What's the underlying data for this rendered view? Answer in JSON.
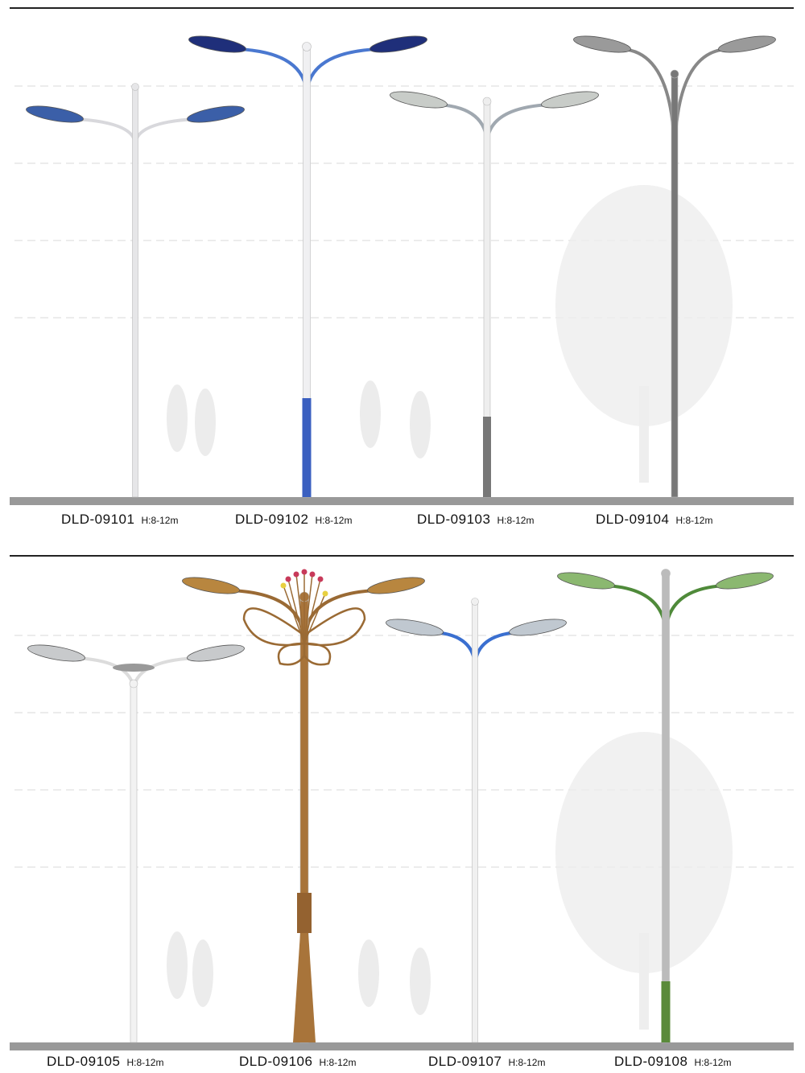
{
  "products": [
    {
      "code": "DLD-09101",
      "height": "H:8-12m",
      "pole_color": "#e6e6e8",
      "arm_color": "#d8d8dc",
      "head_color": "#3b5fa8"
    },
    {
      "code": "DLD-09102",
      "height": "H:8-12m",
      "pole_color": "#f0f0f2",
      "arm_color": "#4a78d0",
      "head_color": "#1f2f7a",
      "base_color": "#3a5fc0"
    },
    {
      "code": "DLD-09103",
      "height": "H:8-12m",
      "pole_color": "#eeeeee",
      "arm_color": "#a0a8b0",
      "head_color": "#c8ccc8",
      "base_color": "#777777"
    },
    {
      "code": "DLD-09104",
      "height": "H:8-12m",
      "pole_color": "#777777",
      "arm_color": "#888888",
      "head_color": "#9a9a9a"
    },
    {
      "code": "DLD-09105",
      "height": "H:8-12m",
      "pole_color": "#f2f2f2",
      "arm_color": "#dcdcdc",
      "head_color": "#c8cacc"
    },
    {
      "code": "DLD-09106",
      "height": "H:8-12m",
      "pole_color": "#a8743a",
      "arm_color": "#9a6a34",
      "head_color": "#b8863f"
    },
    {
      "code": "DLD-09107",
      "height": "H:8-12m",
      "pole_color": "#f0f0f0",
      "arm_color": "#3a6fd0",
      "head_color": "#c0c8d0"
    },
    {
      "code": "DLD-09108",
      "height": "H:8-12m",
      "pole_color": "#bbbbbb",
      "arm_color": "#4f8a3a",
      "head_color": "#8bb870",
      "base_color": "#5a8a3a"
    }
  ],
  "colors": {
    "ground": "#999999",
    "guide_lines": "#d8d8d8",
    "separator": "#222222"
  }
}
